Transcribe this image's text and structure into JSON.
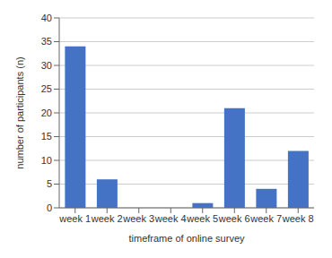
{
  "chart_data": {
    "type": "bar",
    "categories": [
      "week 1",
      "week 2",
      "week 3",
      "week 4",
      "week 5",
      "week 6",
      "week 7",
      "week 8"
    ],
    "values": [
      34,
      6,
      0,
      0,
      1,
      21,
      4,
      12
    ],
    "color": "#4472C4",
    "xlabel": "timeframe of online survey",
    "ylabel": "number of participants (n)",
    "ylim": [
      0,
      40
    ],
    "yticks": [
      0,
      5,
      10,
      15,
      20,
      25,
      30,
      35,
      40
    ],
    "grid": true
  }
}
